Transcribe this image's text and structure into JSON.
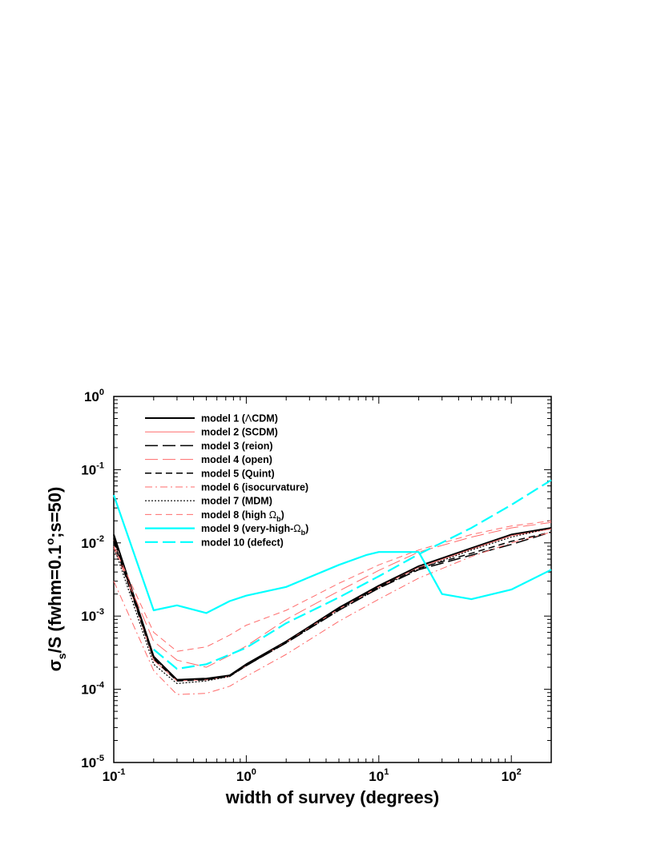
{
  "chart_data": {
    "type": "line",
    "xlabel": "width of survey (degrees)",
    "ylabel": "σs/S (fwhm=0.1°;s=50)",
    "xscale": "log",
    "yscale": "log",
    "xlim": [
      0.1,
      200
    ],
    "ylim": [
      1e-05,
      1
    ],
    "grid": false,
    "legend_position": "top-left",
    "x_tick_labels": [
      {
        "base": "10",
        "exp": "-1",
        "value": 0.1
      },
      {
        "base": "10",
        "exp": "0",
        "value": 1
      },
      {
        "base": "10",
        "exp": "1",
        "value": 10
      },
      {
        "base": "10",
        "exp": "2",
        "value": 100
      }
    ],
    "y_tick_labels": [
      {
        "base": "10",
        "exp": "0",
        "value": 1
      },
      {
        "base": "10",
        "exp": "-1",
        "value": 0.1
      },
      {
        "base": "10",
        "exp": "-2",
        "value": 0.01
      },
      {
        "base": "10",
        "exp": "-3",
        "value": 0.001
      },
      {
        "base": "10",
        "exp": "-4",
        "value": 0.0001
      },
      {
        "base": "10",
        "exp": "-5",
        "value": 1e-05
      }
    ],
    "series": [
      {
        "name": "model 1 (ΛCDM)",
        "color": "#000000",
        "style": "solid",
        "width": 2,
        "x": [
          0.1,
          0.2,
          0.3,
          0.5,
          0.75,
          1,
          2,
          5,
          10,
          20,
          50,
          100,
          200
        ],
        "y": [
          0.013,
          0.00028,
          0.000135,
          0.00014,
          0.000155,
          0.00022,
          0.00045,
          0.0013,
          0.0026,
          0.0048,
          0.0085,
          0.013,
          0.016
        ]
      },
      {
        "name": "model 2 (SCDM)",
        "color": "#ff6b6b",
        "style": "solid",
        "width": 1,
        "x": [
          0.1,
          0.2,
          0.3,
          0.5,
          0.75,
          1,
          2,
          5,
          10,
          20,
          50,
          100,
          200
        ],
        "y": [
          0.011,
          0.00025,
          0.00013,
          0.000135,
          0.00015,
          0.00021,
          0.00044,
          0.00125,
          0.0025,
          0.0046,
          0.0082,
          0.0125,
          0.0155
        ]
      },
      {
        "name": "model 3 (reion)",
        "color": "#000000",
        "style": "longdash",
        "width": 1.5,
        "x": [
          0.1,
          0.2,
          0.3,
          0.5,
          0.75,
          1,
          2,
          5,
          10,
          20,
          50,
          100,
          200
        ],
        "y": [
          0.0115,
          0.00027,
          0.000135,
          0.000138,
          0.000153,
          0.00021,
          0.00043,
          0.0012,
          0.0024,
          0.0043,
          0.0068,
          0.0095,
          0.014
        ]
      },
      {
        "name": "model 4 (open)",
        "color": "#ff6b6b",
        "style": "longdash",
        "width": 1,
        "x": [
          0.1,
          0.2,
          0.3,
          0.5,
          0.75,
          1,
          2,
          5,
          10,
          20,
          50,
          100,
          200
        ],
        "y": [
          0.0085,
          0.00045,
          0.00025,
          0.0002,
          0.00029,
          0.00039,
          0.0009,
          0.0022,
          0.0042,
          0.0075,
          0.012,
          0.016,
          0.019
        ]
      },
      {
        "name": "model 5 (Quint)",
        "color": "#000000",
        "style": "dash",
        "width": 1.5,
        "x": [
          0.1,
          0.2,
          0.3,
          0.5,
          0.75,
          1,
          2,
          5,
          10,
          20,
          50,
          100,
          200
        ],
        "y": [
          0.0105,
          0.00026,
          0.00013,
          0.000135,
          0.00015,
          0.00021,
          0.00044,
          0.00125,
          0.0025,
          0.0045,
          0.0072,
          0.0105,
          0.014
        ]
      },
      {
        "name": "model 6 (isocurvature)",
        "color": "#ff6b6b",
        "style": "dashdot",
        "width": 1,
        "x": [
          0.1,
          0.2,
          0.3,
          0.5,
          0.75,
          1,
          2,
          5,
          10,
          20,
          50,
          100,
          200
        ],
        "y": [
          0.003,
          0.00018,
          8.5e-05,
          8.8e-05,
          0.00011,
          0.00015,
          0.0003,
          0.00085,
          0.0017,
          0.0033,
          0.0065,
          0.01,
          0.014
        ]
      },
      {
        "name": "model 7 (MDM)",
        "color": "#000000",
        "style": "dot",
        "width": 1.2,
        "x": [
          0.1,
          0.2,
          0.3,
          0.5,
          0.75,
          1,
          2,
          5,
          10,
          20,
          50,
          100,
          200
        ],
        "y": [
          0.009,
          0.00022,
          0.00012,
          0.00013,
          0.00015,
          0.00021,
          0.00043,
          0.0012,
          0.0024,
          0.0044,
          0.008,
          0.012,
          0.016
        ]
      },
      {
        "name": "model 8 (high Ωb)",
        "color": "#ff6b6b",
        "style": "dash",
        "width": 1,
        "x": [
          0.1,
          0.2,
          0.3,
          0.5,
          0.75,
          1,
          2,
          5,
          10,
          20,
          50,
          100,
          200
        ],
        "y": [
          0.009,
          0.0006,
          0.00033,
          0.00038,
          0.00055,
          0.00075,
          0.0012,
          0.0028,
          0.005,
          0.008,
          0.013,
          0.017,
          0.02
        ]
      },
      {
        "name": "model 9 (very-high-Ωb)",
        "color": "#00ffff",
        "style": "solid",
        "width": 2.2,
        "x": [
          0.1,
          0.2,
          0.3,
          0.5,
          0.75,
          1,
          2,
          5,
          8,
          10,
          20,
          30,
          50,
          100,
          200
        ],
        "y": [
          0.045,
          0.0012,
          0.0014,
          0.0011,
          0.0016,
          0.0019,
          0.0025,
          0.005,
          0.0068,
          0.0075,
          0.0075,
          0.002,
          0.0017,
          0.0023,
          0.0043
        ]
      },
      {
        "name": "model 10 (defect)",
        "color": "#00ffff",
        "style": "longdash",
        "width": 2.2,
        "x": [
          0.2,
          0.3,
          0.5,
          1,
          2,
          5,
          10,
          20,
          50,
          100,
          200
        ],
        "y": [
          0.00035,
          0.00019,
          0.00022,
          0.00037,
          0.0008,
          0.0018,
          0.0035,
          0.007,
          0.016,
          0.033,
          0.072
        ]
      }
    ],
    "legend_entries": [
      {
        "text": "model 1 (ΛCDM)",
        "pre": "model 1 (",
        "sym": "Λ",
        "post": "CDM)",
        "sub": ""
      },
      {
        "text": "model 2 (SCDM)",
        "pre": "model 2 (SCDM)",
        "sym": "",
        "post": "",
        "sub": ""
      },
      {
        "text": "model 3 (reion)",
        "pre": "model 3 (reion)",
        "sym": "",
        "post": "",
        "sub": ""
      },
      {
        "text": "model 4 (open)",
        "pre": "model 4 (open)",
        "sym": "",
        "post": "",
        "sub": ""
      },
      {
        "text": "model 5 (Quint)",
        "pre": "model 5 (Quint)",
        "sym": "",
        "post": "",
        "sub": ""
      },
      {
        "text": "model 6 (isocurvature)",
        "pre": "model 6 (isocurvature)",
        "sym": "",
        "post": "",
        "sub": ""
      },
      {
        "text": "model 7 (MDM)",
        "pre": "model 7 (MDM)",
        "sym": "",
        "post": "",
        "sub": ""
      },
      {
        "text": "model 8 (high Ωb)",
        "pre": "model 8 (high ",
        "sym": "Ω",
        "sub": "b",
        "post": ")"
      },
      {
        "text": "model 9 (very-high-Ωb)",
        "pre": "model 9 (very-high-",
        "sym": "Ω",
        "sub": "b",
        "post": ")"
      },
      {
        "text": "model 10 (defect)",
        "pre": "model 10 (defect)",
        "sym": "",
        "post": "",
        "sub": ""
      }
    ]
  }
}
